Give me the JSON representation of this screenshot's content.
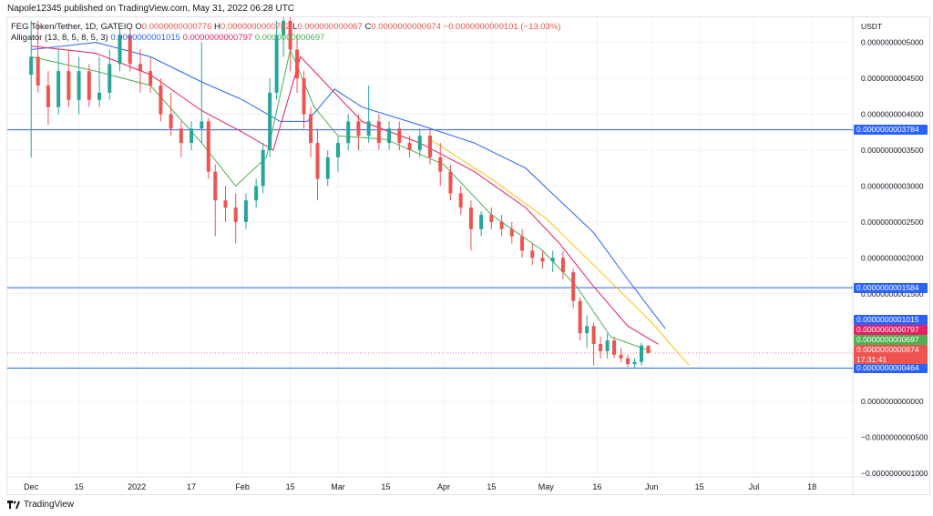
{
  "publisher_line": "Napole12345 published on TradingView.com, May 31, 2022 06:28 UTC",
  "legend": {
    "symbol": "FEG Token/Tether, 1D, GATEIO",
    "o_label": "O",
    "o_value": "0.0000000000776",
    "h_label": "H",
    "h_value": "0.0000000000782",
    "l_label": "L",
    "l_value": "0.000000000067",
    "c_label": "C",
    "c_value": "0.0000000000674",
    "change": "−0.0000000000101 (−13.03%)",
    "indicator": "Alligator (13, 8, 5, 8, 5, 3)",
    "jaw_value": "0.0000000001015",
    "teeth_value": "0.0000000000797",
    "lips_value": "0.0000000000697"
  },
  "footer": {
    "brand": "TradingView"
  },
  "colors": {
    "up": "#26a69a",
    "down": "#ef5350",
    "jaw": "#2962ff",
    "teeth": "#e91e63",
    "lips": "#4caf50",
    "trend": "#ffc107",
    "hline": "#2962ff",
    "grid": "#f0f3fa"
  },
  "chart_data": {
    "type": "candlestick",
    "currency": "USDT",
    "y_ticks": [
      {
        "label": "0.0000000005000",
        "value": 5.0
      },
      {
        "label": "0.0000000004500",
        "value": 4.5
      },
      {
        "label": "0.0000000004000",
        "value": 4.0
      },
      {
        "label": "0.0000000003500",
        "value": 3.5
      },
      {
        "label": "0.0000000003000",
        "value": 3.0
      },
      {
        "label": "0.0000000002500",
        "value": 2.5
      },
      {
        "label": "0.0000000002000",
        "value": 2.0
      },
      {
        "label": "0.0000000001500",
        "value": 1.5
      },
      {
        "label": "0.0000000000000",
        "value": 0.0
      },
      {
        "label": "−0.0000000000500",
        "value": -0.5
      },
      {
        "label": "−0.0000000001000",
        "value": -1.0
      }
    ],
    "y_unit_note": "values in units of 1e-10 USDT",
    "ylim": [
      -1.05,
      5.35
    ],
    "x_ticks": [
      {
        "label": "Dec",
        "date": "2021-12-01"
      },
      {
        "label": "15",
        "date": "2021-12-15"
      },
      {
        "label": "2022",
        "date": "2022-01-01"
      },
      {
        "label": "17",
        "date": "2022-01-17"
      },
      {
        "label": "Feb",
        "date": "2022-02-01"
      },
      {
        "label": "15",
        "date": "2022-02-15"
      },
      {
        "label": "Mar",
        "date": "2022-03-01"
      },
      {
        "label": "15",
        "date": "2022-03-15"
      },
      {
        "label": "Apr",
        "date": "2022-04-01"
      },
      {
        "label": "15",
        "date": "2022-04-15"
      },
      {
        "label": "May",
        "date": "2022-05-01"
      },
      {
        "label": "16",
        "date": "2022-05-16"
      },
      {
        "label": "Jun",
        "date": "2022-06-01"
      },
      {
        "label": "15",
        "date": "2022-06-15"
      },
      {
        "label": "Jul",
        "date": "2022-07-01"
      },
      {
        "label": "18",
        "date": "2022-07-18"
      }
    ],
    "horizontal_lines": [
      {
        "value": 3.784,
        "label": "0.0000000003784"
      },
      {
        "value": 1.584,
        "label": "0.0000000001584"
      },
      {
        "value": 0.464,
        "label": "0.0000000000464"
      }
    ],
    "price_labels": [
      {
        "value": 1.015,
        "label": "0.0000000001015",
        "color": "#2962ff"
      },
      {
        "value": 0.797,
        "label": "0.0000000000797",
        "color": "#e91e63"
      },
      {
        "value": 0.697,
        "label": "0.0000000000697",
        "color": "#4caf50"
      },
      {
        "value": 0.674,
        "label": "0.0000000000674",
        "color": "#ef5350",
        "sub": "17:31:41"
      }
    ],
    "candles": [
      {
        "date": "2021-12-01",
        "o": 4.55,
        "h": 5.3,
        "l": 3.4,
        "c": 4.8
      },
      {
        "date": "2021-12-03",
        "o": 4.8,
        "h": 5.3,
        "l": 4.3,
        "c": 4.4
      },
      {
        "date": "2021-12-06",
        "o": 4.4,
        "h": 4.6,
        "l": 3.85,
        "c": 4.1
      },
      {
        "date": "2021-12-09",
        "o": 4.1,
        "h": 4.9,
        "l": 4.0,
        "c": 4.6
      },
      {
        "date": "2021-12-12",
        "o": 4.6,
        "h": 4.9,
        "l": 4.1,
        "c": 4.2
      },
      {
        "date": "2021-12-15",
        "o": 4.2,
        "h": 4.8,
        "l": 4.0,
        "c": 4.6
      },
      {
        "date": "2021-12-18",
        "o": 4.6,
        "h": 4.7,
        "l": 4.1,
        "c": 4.2
      },
      {
        "date": "2021-12-21",
        "o": 4.2,
        "h": 4.8,
        "l": 4.1,
        "c": 4.3
      },
      {
        "date": "2021-12-24",
        "o": 4.3,
        "h": 4.9,
        "l": 4.2,
        "c": 4.7
      },
      {
        "date": "2021-12-27",
        "o": 4.7,
        "h": 5.2,
        "l": 4.6,
        "c": 5.1
      },
      {
        "date": "2021-12-30",
        "o": 5.1,
        "h": 5.2,
        "l": 4.6,
        "c": 4.7
      },
      {
        "date": "2022-01-02",
        "o": 4.7,
        "h": 4.9,
        "l": 4.3,
        "c": 4.6
      },
      {
        "date": "2022-01-05",
        "o": 4.6,
        "h": 4.8,
        "l": 4.3,
        "c": 4.4
      },
      {
        "date": "2022-01-08",
        "o": 4.4,
        "h": 4.5,
        "l": 3.9,
        "c": 4.0
      },
      {
        "date": "2022-01-11",
        "o": 4.0,
        "h": 4.3,
        "l": 3.7,
        "c": 3.8
      },
      {
        "date": "2022-01-14",
        "o": 3.8,
        "h": 3.9,
        "l": 3.4,
        "c": 3.6
      },
      {
        "date": "2022-01-17",
        "o": 3.6,
        "h": 3.9,
        "l": 3.5,
        "c": 3.8
      },
      {
        "date": "2022-01-20",
        "o": 3.8,
        "h": 5.0,
        "l": 3.6,
        "c": 3.9
      },
      {
        "date": "2022-01-22",
        "o": 3.9,
        "h": 3.95,
        "l": 3.1,
        "c": 3.2
      },
      {
        "date": "2022-01-24",
        "o": 3.2,
        "h": 3.3,
        "l": 2.3,
        "c": 2.8
      },
      {
        "date": "2022-01-27",
        "o": 2.8,
        "h": 3.0,
        "l": 2.5,
        "c": 2.7
      },
      {
        "date": "2022-01-30",
        "o": 2.7,
        "h": 2.9,
        "l": 2.2,
        "c": 2.5
      },
      {
        "date": "2022-02-02",
        "o": 2.5,
        "h": 2.9,
        "l": 2.4,
        "c": 2.8
      },
      {
        "date": "2022-02-05",
        "o": 2.8,
        "h": 3.1,
        "l": 2.7,
        "c": 3.0
      },
      {
        "date": "2022-02-07",
        "o": 3.0,
        "h": 3.6,
        "l": 2.9,
        "c": 3.5
      },
      {
        "date": "2022-02-09",
        "o": 3.5,
        "h": 4.5,
        "l": 3.4,
        "c": 4.3
      },
      {
        "date": "2022-02-11",
        "o": 4.3,
        "h": 5.3,
        "l": 4.2,
        "c": 5.1
      },
      {
        "date": "2022-02-13",
        "o": 5.1,
        "h": 5.35,
        "l": 4.8,
        "c": 5.3
      },
      {
        "date": "2022-02-15",
        "o": 5.3,
        "h": 5.35,
        "l": 4.6,
        "c": 4.9
      },
      {
        "date": "2022-02-17",
        "o": 4.9,
        "h": 5.1,
        "l": 4.3,
        "c": 4.5
      },
      {
        "date": "2022-02-19",
        "o": 4.5,
        "h": 4.6,
        "l": 3.8,
        "c": 4.0
      },
      {
        "date": "2022-02-21",
        "o": 4.0,
        "h": 4.1,
        "l": 3.4,
        "c": 3.6
      },
      {
        "date": "2022-02-23",
        "o": 3.6,
        "h": 3.8,
        "l": 2.8,
        "c": 3.1
      },
      {
        "date": "2022-02-26",
        "o": 3.1,
        "h": 3.5,
        "l": 3.0,
        "c": 3.4
      },
      {
        "date": "2022-03-01",
        "o": 3.4,
        "h": 3.7,
        "l": 3.2,
        "c": 3.6
      },
      {
        "date": "2022-03-04",
        "o": 3.6,
        "h": 4.0,
        "l": 3.5,
        "c": 3.9
      },
      {
        "date": "2022-03-07",
        "o": 3.9,
        "h": 4.0,
        "l": 3.5,
        "c": 3.7
      },
      {
        "date": "2022-03-10",
        "o": 3.7,
        "h": 4.4,
        "l": 3.6,
        "c": 3.9
      },
      {
        "date": "2022-03-13",
        "o": 3.9,
        "h": 4.0,
        "l": 3.5,
        "c": 3.6
      },
      {
        "date": "2022-03-16",
        "o": 3.6,
        "h": 3.9,
        "l": 3.5,
        "c": 3.8
      },
      {
        "date": "2022-03-19",
        "o": 3.8,
        "h": 3.9,
        "l": 3.5,
        "c": 3.6
      },
      {
        "date": "2022-03-22",
        "o": 3.6,
        "h": 3.7,
        "l": 3.4,
        "c": 3.5
      },
      {
        "date": "2022-03-25",
        "o": 3.5,
        "h": 3.8,
        "l": 3.4,
        "c": 3.7
      },
      {
        "date": "2022-03-28",
        "o": 3.7,
        "h": 3.8,
        "l": 3.3,
        "c": 3.4
      },
      {
        "date": "2022-03-31",
        "o": 3.4,
        "h": 3.6,
        "l": 3.0,
        "c": 3.2
      },
      {
        "date": "2022-04-03",
        "o": 3.2,
        "h": 3.3,
        "l": 2.8,
        "c": 2.9
      },
      {
        "date": "2022-04-06",
        "o": 2.9,
        "h": 3.0,
        "l": 2.6,
        "c": 2.7
      },
      {
        "date": "2022-04-09",
        "o": 2.7,
        "h": 2.8,
        "l": 2.1,
        "c": 2.4
      },
      {
        "date": "2022-04-12",
        "o": 2.4,
        "h": 2.65,
        "l": 2.3,
        "c": 2.6
      },
      {
        "date": "2022-04-15",
        "o": 2.6,
        "h": 2.7,
        "l": 2.4,
        "c": 2.5
      },
      {
        "date": "2022-04-18",
        "o": 2.5,
        "h": 2.6,
        "l": 2.3,
        "c": 2.4
      },
      {
        "date": "2022-04-21",
        "o": 2.4,
        "h": 2.5,
        "l": 2.2,
        "c": 2.3
      },
      {
        "date": "2022-04-24",
        "o": 2.3,
        "h": 2.4,
        "l": 2.0,
        "c": 2.1
      },
      {
        "date": "2022-04-27",
        "o": 2.1,
        "h": 2.2,
        "l": 1.9,
        "c": 2.0
      },
      {
        "date": "2022-04-30",
        "o": 2.0,
        "h": 2.1,
        "l": 1.85,
        "c": 1.95
      },
      {
        "date": "2022-05-03",
        "o": 1.95,
        "h": 2.1,
        "l": 1.8,
        "c": 2.0
      },
      {
        "date": "2022-05-06",
        "o": 2.0,
        "h": 2.1,
        "l": 1.7,
        "c": 1.8
      },
      {
        "date": "2022-05-09",
        "o": 1.8,
        "h": 1.85,
        "l": 1.3,
        "c": 1.4
      },
      {
        "date": "2022-05-11",
        "o": 1.4,
        "h": 1.45,
        "l": 0.85,
        "c": 0.95
      },
      {
        "date": "2022-05-13",
        "o": 0.95,
        "h": 1.2,
        "l": 0.75,
        "c": 1.05
      },
      {
        "date": "2022-05-15",
        "o": 1.05,
        "h": 1.1,
        "l": 0.5,
        "c": 0.8
      },
      {
        "date": "2022-05-17",
        "o": 0.8,
        "h": 0.9,
        "l": 0.6,
        "c": 0.7
      },
      {
        "date": "2022-05-19",
        "o": 0.7,
        "h": 0.95,
        "l": 0.6,
        "c": 0.85
      },
      {
        "date": "2022-05-21",
        "o": 0.85,
        "h": 0.9,
        "l": 0.6,
        "c": 0.65
      },
      {
        "date": "2022-05-23",
        "o": 0.65,
        "h": 0.75,
        "l": 0.55,
        "c": 0.6
      },
      {
        "date": "2022-05-25",
        "o": 0.6,
        "h": 0.65,
        "l": 0.48,
        "c": 0.52
      },
      {
        "date": "2022-05-27",
        "o": 0.52,
        "h": 0.6,
        "l": 0.46,
        "c": 0.55
      },
      {
        "date": "2022-05-29",
        "o": 0.55,
        "h": 0.82,
        "l": 0.5,
        "c": 0.78
      },
      {
        "date": "2022-05-31",
        "o": 0.776,
        "h": 0.782,
        "l": 0.67,
        "c": 0.674
      }
    ],
    "series": [
      {
        "name": "Alligator Jaw",
        "color": "#2962ff",
        "points": [
          [
            "2021-12-01",
            4.9
          ],
          [
            "2021-12-20",
            5.0
          ],
          [
            "2022-01-05",
            4.8
          ],
          [
            "2022-01-20",
            4.45
          ],
          [
            "2022-02-01",
            4.2
          ],
          [
            "2022-02-12",
            3.9
          ],
          [
            "2022-02-20",
            3.9
          ],
          [
            "2022-02-28",
            4.35
          ],
          [
            "2022-03-08",
            4.1
          ],
          [
            "2022-03-25",
            3.85
          ],
          [
            "2022-04-10",
            3.6
          ],
          [
            "2022-04-25",
            3.25
          ],
          [
            "2022-05-05",
            2.8
          ],
          [
            "2022-05-15",
            2.35
          ],
          [
            "2022-05-25",
            1.7
          ],
          [
            "2022-06-05",
            1.015
          ]
        ]
      },
      {
        "name": "Alligator Teeth",
        "color": "#e91e63",
        "points": [
          [
            "2021-12-01",
            4.95
          ],
          [
            "2021-12-20",
            4.85
          ],
          [
            "2022-01-05",
            4.55
          ],
          [
            "2022-01-20",
            4.05
          ],
          [
            "2022-02-01",
            3.75
          ],
          [
            "2022-02-10",
            3.5
          ],
          [
            "2022-02-18",
            4.8
          ],
          [
            "2022-02-28",
            4.3
          ],
          [
            "2022-03-08",
            3.9
          ],
          [
            "2022-03-25",
            3.6
          ],
          [
            "2022-04-10",
            3.2
          ],
          [
            "2022-04-25",
            2.7
          ],
          [
            "2022-05-05",
            2.2
          ],
          [
            "2022-05-15",
            1.6
          ],
          [
            "2022-05-25",
            1.05
          ],
          [
            "2022-06-03",
            0.797
          ]
        ]
      },
      {
        "name": "Alligator Lips",
        "color": "#4caf50",
        "points": [
          [
            "2021-12-01",
            4.8
          ],
          [
            "2021-12-20",
            4.6
          ],
          [
            "2022-01-05",
            4.4
          ],
          [
            "2022-01-20",
            3.6
          ],
          [
            "2022-01-30",
            3.0
          ],
          [
            "2022-02-08",
            3.4
          ],
          [
            "2022-02-15",
            4.9
          ],
          [
            "2022-02-22",
            4.1
          ],
          [
            "2022-03-01",
            3.7
          ],
          [
            "2022-03-15",
            3.65
          ],
          [
            "2022-04-01",
            3.3
          ],
          [
            "2022-04-15",
            2.6
          ],
          [
            "2022-04-30",
            2.1
          ],
          [
            "2022-05-10",
            1.6
          ],
          [
            "2022-05-20",
            0.9
          ],
          [
            "2022-06-01",
            0.697
          ]
        ]
      },
      {
        "name": "Trend",
        "color": "#ffc107",
        "points": [
          [
            "2022-03-28",
            3.65
          ],
          [
            "2022-04-15",
            3.1
          ],
          [
            "2022-05-01",
            2.55
          ],
          [
            "2022-05-15",
            1.9
          ],
          [
            "2022-06-01",
            1.1
          ],
          [
            "2022-06-12",
            0.5
          ]
        ]
      }
    ]
  }
}
